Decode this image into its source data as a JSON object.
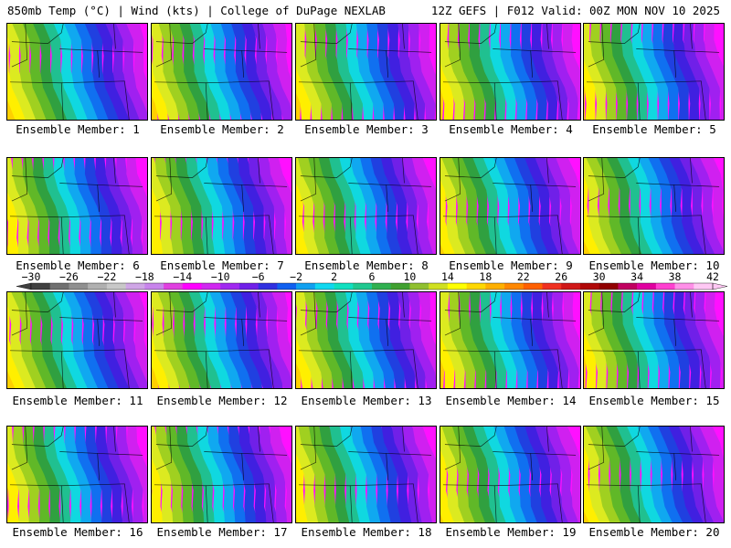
{
  "header": {
    "left": "850mb Temp (°C) | Wind (kts) | College of DuPage NEXLAB",
    "right": "12Z GEFS | F012 Valid: 00Z MON NOV 10 2025"
  },
  "members": [
    "Ensemble Member: 1",
    "Ensemble Member: 2",
    "Ensemble Member: 3",
    "Ensemble Member: 4",
    "Ensemble Member: 5",
    "Ensemble Member: 6",
    "Ensemble Member: 7",
    "Ensemble Member: 8",
    "Ensemble Member: 9",
    "Ensemble Member: 10",
    "Ensemble Member: 11",
    "Ensemble Member: 12",
    "Ensemble Member: 13",
    "Ensemble Member: 14",
    "Ensemble Member: 15",
    "Ensemble Member: 16",
    "Ensemble Member: 17",
    "Ensemble Member: 18",
    "Ensemble Member: 19",
    "Ensemble Member: 20"
  ],
  "colorbar": {
    "tick_labels": [
      "−30",
      "−26",
      "−22",
      "−18",
      "−14",
      "−10",
      "−6",
      "−2",
      "2",
      "6",
      "10",
      "14",
      "18",
      "22",
      "26",
      "30",
      "34",
      "38",
      "42"
    ],
    "colors": [
      "#404040",
      "#707070",
      "#909090",
      "#b0b0b0",
      "#c8c8c8",
      "#cfa6e6",
      "#c884ec",
      "#e040e0",
      "#ff00ff",
      "#d028f0",
      "#a028f0",
      "#7020e8",
      "#3030e0",
      "#1060f0",
      "#10a0f0",
      "#10d8f0",
      "#10e0c0",
      "#20c890",
      "#30b050",
      "#40a030",
      "#90c030",
      "#d0e020",
      "#ffff00",
      "#ffd800",
      "#ffb000",
      "#ff8800",
      "#ff6000",
      "#f03020",
      "#d01818",
      "#b00808",
      "#900000",
      "#c00060",
      "#e000a0",
      "#ff40d0",
      "#ff90e8",
      "#ffc8f4"
    ]
  },
  "field_colors": [
    "#ff9a00",
    "#ffb400",
    "#ffd000",
    "#ffef00",
    "#dcea20",
    "#a0d020",
    "#60b828",
    "#30a040",
    "#20c090",
    "#10d8e0",
    "#10a8f0",
    "#1070f0",
    "#2040e0",
    "#4020e0",
    "#7020e8",
    "#a020f0",
    "#d020f0",
    "#ff10ff"
  ]
}
